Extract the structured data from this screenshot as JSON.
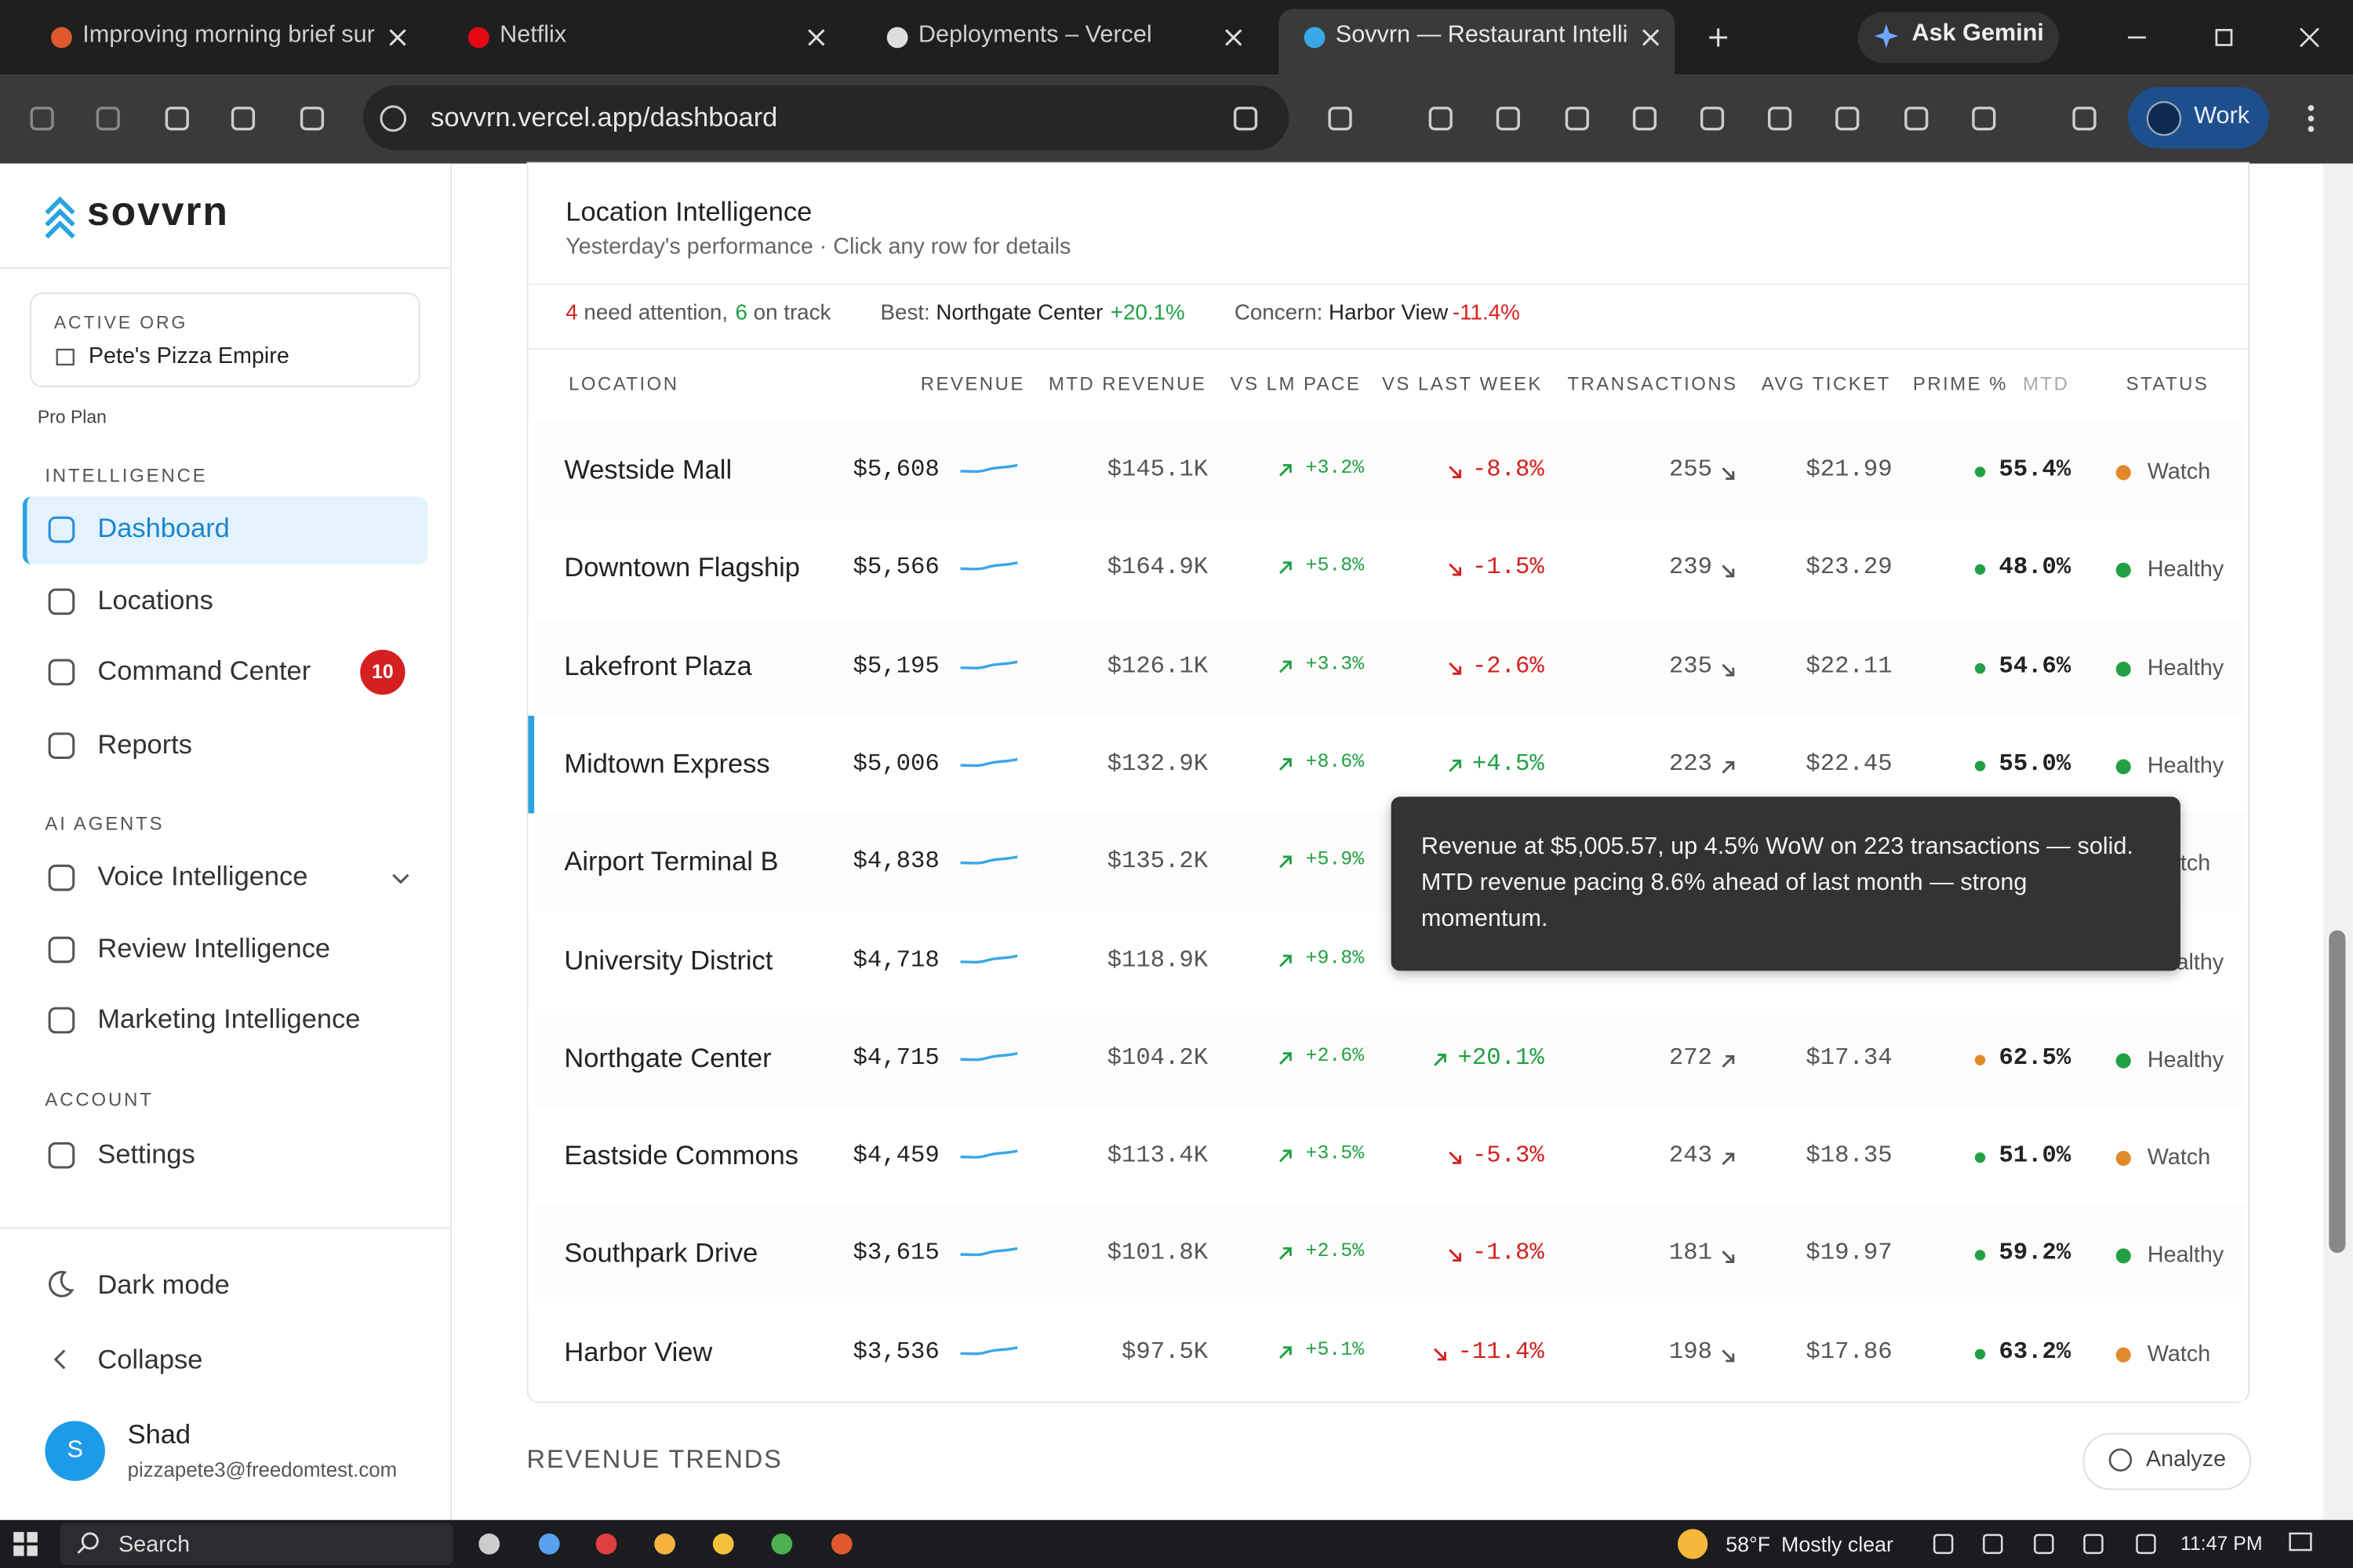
{
  "browser": {
    "tabs": [
      "Improving morning brief sur",
      "Netflix",
      "Deployments – Vercel",
      "Sovvrn — Restaurant Intellig"
    ],
    "ask_gemini": "Ask Gemini",
    "url": "sovvrn.vercel.app/dashboard",
    "profile": "Work"
  },
  "sidebar": {
    "brand": "sovvrn",
    "active_org_label": "ACTIVE ORG",
    "org": "Pete's Pizza Empire",
    "plan": "Pro Plan",
    "sections": [
      {
        "title": "INTELLIGENCE",
        "items": [
          {
            "label": "Dashboard",
            "active": true
          },
          {
            "label": "Locations"
          },
          {
            "label": "Command Center",
            "badge": 10
          },
          {
            "label": "Reports"
          }
        ]
      },
      {
        "title": "AI AGENTS",
        "items": [
          {
            "label": "Voice Intelligence",
            "expandable": true
          },
          {
            "label": "Review Intelligence"
          },
          {
            "label": "Marketing Intelligence"
          }
        ]
      },
      {
        "title": "ACCOUNT",
        "items": [
          {
            "label": "Settings"
          }
        ]
      }
    ],
    "dark_mode": "Dark mode",
    "collapse": "Collapse",
    "user": {
      "avatar": "S",
      "name": "Shad",
      "email": "pizzapete3@freedomtest.com"
    }
  },
  "card": {
    "title": "Location Intelligence",
    "subtitle": "Yesterday's performance · Click any row for details",
    "summary": {
      "attention_count": 4,
      "attention_text": "need attention,",
      "ontrack_count": 6,
      "ontrack_text": "on track",
      "best_label": "Best:",
      "best_name": "Northgate Center",
      "best_change": "+20.1%",
      "concern_label": "Concern:",
      "concern_name": "Harbor View",
      "concern_change": "-11.4%"
    },
    "columns": [
      "LOCATION",
      "REVENUE",
      "MTD REVENUE",
      "VS LM PACE",
      "VS LAST WEEK",
      "TRANSACTIONS",
      "AVG TICKET",
      "PRIME %",
      "STATUS"
    ],
    "prime_suffix": "MTD",
    "rows": [
      {
        "name": "Westside Mall",
        "revenue": "$5,608",
        "mtd": "$145.1K",
        "lm_pace": "+3.2%",
        "last_week": "-8.8%",
        "transactions": "255",
        "trans_trend": "down",
        "avg_ticket": "$21.99",
        "prime": "55.4%",
        "prime_color": "#22a045",
        "status": "Watch"
      },
      {
        "name": "Downtown Flagship",
        "revenue": "$5,566",
        "mtd": "$164.9K",
        "lm_pace": "+5.8%",
        "last_week": "-1.5%",
        "transactions": "239",
        "trans_trend": "down",
        "avg_ticket": "$23.29",
        "prime": "48.0%",
        "prime_color": "#22a045",
        "status": "Healthy"
      },
      {
        "name": "Lakefront Plaza",
        "revenue": "$5,195",
        "mtd": "$126.1K",
        "lm_pace": "+3.3%",
        "last_week": "-2.6%",
        "transactions": "235",
        "trans_trend": "down",
        "avg_ticket": "$22.11",
        "prime": "54.6%",
        "prime_color": "#22a045",
        "status": "Healthy"
      },
      {
        "name": "Midtown Express",
        "revenue": "$5,006",
        "mtd": "$132.9K",
        "lm_pace": "+8.6%",
        "last_week": "+4.5%",
        "transactions": "223",
        "trans_trend": "up",
        "avg_ticket": "$22.45",
        "prime": "55.0%",
        "prime_color": "#22a045",
        "status": "Healthy",
        "selected": true
      },
      {
        "name": "Airport Terminal B",
        "revenue": "$4,838",
        "mtd": "$135.2K",
        "lm_pace": "+5.9%",
        "last_week": null,
        "transactions": null,
        "trans_trend": null,
        "avg_ticket": null,
        "prime": null,
        "prime_color": null,
        "status": "Watch"
      },
      {
        "name": "University District",
        "revenue": "$4,718",
        "mtd": "$118.9K",
        "lm_pace": "+9.8%",
        "last_week": null,
        "transactions": null,
        "trans_trend": null,
        "avg_ticket": null,
        "prime": null,
        "prime_color": null,
        "status": "Healthy"
      },
      {
        "name": "Northgate Center",
        "revenue": "$4,715",
        "mtd": "$104.2K",
        "lm_pace": "+2.6%",
        "last_week": "+20.1%",
        "transactions": "272",
        "trans_trend": "up",
        "avg_ticket": "$17.34",
        "prime": "62.5%",
        "prime_color": "#e08a2c",
        "status": "Healthy"
      },
      {
        "name": "Eastside Commons",
        "revenue": "$4,459",
        "mtd": "$113.4K",
        "lm_pace": "+3.5%",
        "last_week": "-5.3%",
        "transactions": "243",
        "trans_trend": "up",
        "avg_ticket": "$18.35",
        "prime": "51.0%",
        "prime_color": "#22a045",
        "status": "Watch"
      },
      {
        "name": "Southpark Drive",
        "revenue": "$3,615",
        "mtd": "$101.8K",
        "lm_pace": "+2.5%",
        "last_week": "-1.8%",
        "transactions": "181",
        "trans_trend": "down",
        "avg_ticket": "$19.97",
        "prime": "59.2%",
        "prime_color": "#22a045",
        "status": "Healthy"
      },
      {
        "name": "Harbor View",
        "revenue": "$3,536",
        "mtd": "$97.5K",
        "lm_pace": "+5.1%",
        "last_week": "-11.4%",
        "transactions": "198",
        "trans_trend": "down",
        "avg_ticket": "$17.86",
        "prime": "63.2%",
        "prime_color": "#22a045",
        "status": "Watch"
      }
    ],
    "tooltip": "Revenue at $5,005.57, up 4.5% WoW on 223 transactions — solid. MTD revenue pacing 8.6% ahead of last month — strong momentum."
  },
  "section": {
    "title": "REVENUE TRENDS",
    "button": "Analyze"
  },
  "taskbar": {
    "search": "Search",
    "temperature": "58°F",
    "weather": "Mostly clear",
    "time": "11:47 PM"
  }
}
